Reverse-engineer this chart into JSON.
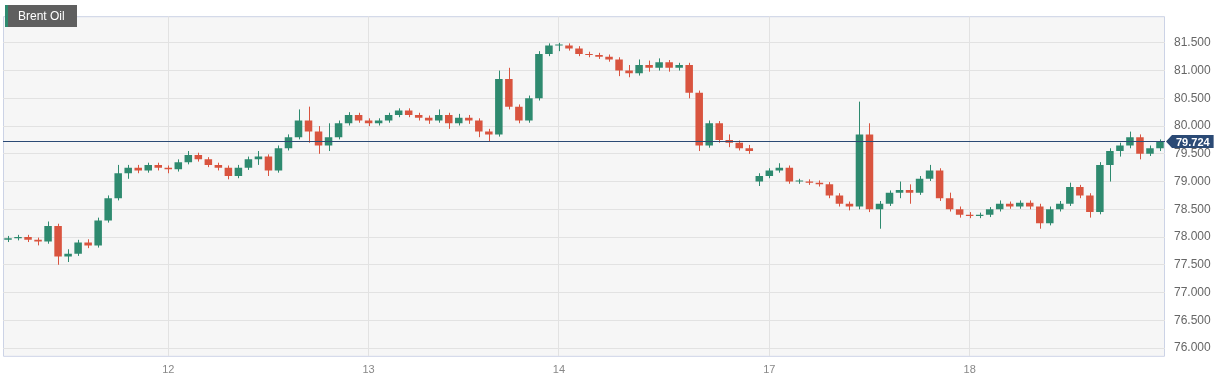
{
  "chart_data": {
    "type": "candlestick",
    "title": "Brent Oil",
    "categories": [
      null,
      null,
      null,
      null,
      null,
      null,
      null,
      null,
      null,
      null,
      null,
      null,
      null,
      null,
      null,
      null,
      "12",
      null,
      null,
      null,
      null,
      null,
      null,
      null,
      null,
      null,
      null,
      null,
      null,
      null,
      null,
      null,
      null,
      null,
      null,
      null,
      "13",
      null,
      null,
      null,
      null,
      null,
      null,
      null,
      null,
      null,
      null,
      null,
      null,
      null,
      null,
      null,
      null,
      null,
      null,
      "14",
      null,
      null,
      null,
      null,
      null,
      null,
      null,
      null,
      null,
      null,
      null,
      null,
      null,
      null,
      null,
      null,
      null,
      null,
      null,
      null,
      "17",
      null,
      null,
      null,
      null,
      null,
      null,
      null,
      null,
      null,
      null,
      null,
      null,
      null,
      null,
      null,
      null,
      null,
      null,
      null,
      "18",
      null,
      null,
      null,
      null,
      null,
      null,
      null,
      null,
      null,
      null,
      null,
      null,
      null,
      null,
      null,
      null,
      null,
      null,
      null
    ],
    "ohlc": [
      [
        77.95,
        78.02,
        77.91,
        77.98
      ],
      [
        77.98,
        78.04,
        77.94,
        78.0
      ],
      [
        78.0,
        78.04,
        77.91,
        77.95
      ],
      [
        77.95,
        77.99,
        77.85,
        77.92
      ],
      [
        77.92,
        78.28,
        77.88,
        78.2
      ],
      [
        78.2,
        78.24,
        77.5,
        77.65
      ],
      [
        77.65,
        77.78,
        77.55,
        77.7
      ],
      [
        77.7,
        77.95,
        77.66,
        77.9
      ],
      [
        77.9,
        77.96,
        77.8,
        77.85
      ],
      [
        77.85,
        78.35,
        77.81,
        78.3
      ],
      [
        78.3,
        78.75,
        78.26,
        78.7
      ],
      [
        78.7,
        79.3,
        78.66,
        79.15
      ],
      [
        79.15,
        79.3,
        79.05,
        79.25
      ],
      [
        79.25,
        79.3,
        79.15,
        79.2
      ],
      [
        79.2,
        79.34,
        79.16,
        79.3
      ],
      [
        79.3,
        79.34,
        79.2,
        79.25
      ],
      [
        79.25,
        79.29,
        79.15,
        79.22
      ],
      [
        79.22,
        79.4,
        79.18,
        79.35
      ],
      [
        79.35,
        79.55,
        79.31,
        79.48
      ],
      [
        79.48,
        79.52,
        79.36,
        79.4
      ],
      [
        79.4,
        79.44,
        79.26,
        79.3
      ],
      [
        79.3,
        79.34,
        79.2,
        79.25
      ],
      [
        79.25,
        79.29,
        79.04,
        79.1
      ],
      [
        79.1,
        79.3,
        79.06,
        79.25
      ],
      [
        79.25,
        79.45,
        79.21,
        79.4
      ],
      [
        79.4,
        79.55,
        79.3,
        79.45
      ],
      [
        79.45,
        79.49,
        79.1,
        79.2
      ],
      [
        79.2,
        79.65,
        79.16,
        79.6
      ],
      [
        79.6,
        79.85,
        79.56,
        79.8
      ],
      [
        79.8,
        80.3,
        79.76,
        80.1
      ],
      [
        80.1,
        80.35,
        79.7,
        79.9
      ],
      [
        79.9,
        80.0,
        79.5,
        79.65
      ],
      [
        79.65,
        80.05,
        79.55,
        79.8
      ],
      [
        79.8,
        80.1,
        79.76,
        80.05
      ],
      [
        80.05,
        80.25,
        80.01,
        80.2
      ],
      [
        80.2,
        80.24,
        80.06,
        80.1
      ],
      [
        80.1,
        80.14,
        80.0,
        80.05
      ],
      [
        80.05,
        80.14,
        80.01,
        80.1
      ],
      [
        80.1,
        80.24,
        80.06,
        80.2
      ],
      [
        80.2,
        80.32,
        80.16,
        80.28
      ],
      [
        80.28,
        80.32,
        80.16,
        80.2
      ],
      [
        80.2,
        80.24,
        80.1,
        80.15
      ],
      [
        80.15,
        80.19,
        80.04,
        80.1
      ],
      [
        80.1,
        80.3,
        80.06,
        80.2
      ],
      [
        80.2,
        80.24,
        79.95,
        80.05
      ],
      [
        80.05,
        80.22,
        80.01,
        80.15
      ],
      [
        80.15,
        80.2,
        80.04,
        80.1
      ],
      [
        80.1,
        80.14,
        79.8,
        79.9
      ],
      [
        79.9,
        79.95,
        79.72,
        79.85
      ],
      [
        79.85,
        81.0,
        79.81,
        80.85
      ],
      [
        80.85,
        81.05,
        80.3,
        80.35
      ],
      [
        80.35,
        80.39,
        80.05,
        80.1
      ],
      [
        80.1,
        80.55,
        80.06,
        80.5
      ],
      [
        80.5,
        81.35,
        80.46,
        81.3
      ],
      [
        81.3,
        81.49,
        81.26,
        81.45
      ],
      [
        81.45,
        81.5,
        81.35,
        81.45
      ],
      [
        81.45,
        81.49,
        81.36,
        81.4
      ],
      [
        81.4,
        81.44,
        81.26,
        81.3
      ],
      [
        81.3,
        81.34,
        81.24,
        81.28
      ],
      [
        81.28,
        81.32,
        81.21,
        81.25
      ],
      [
        81.25,
        81.29,
        81.16,
        81.2
      ],
      [
        81.2,
        81.24,
        80.9,
        81.0
      ],
      [
        81.0,
        81.1,
        80.88,
        80.95
      ],
      [
        80.95,
        81.2,
        80.91,
        81.1
      ],
      [
        81.1,
        81.18,
        80.98,
        81.05
      ],
      [
        81.05,
        81.22,
        81.0,
        81.15
      ],
      [
        81.15,
        81.19,
        80.98,
        81.05
      ],
      [
        81.05,
        81.14,
        81.0,
        81.1
      ],
      [
        81.1,
        81.14,
        80.5,
        80.6
      ],
      [
        80.6,
        80.64,
        79.55,
        79.65
      ],
      [
        79.65,
        80.1,
        79.61,
        80.05
      ],
      [
        80.05,
        80.09,
        79.7,
        79.75
      ],
      [
        79.75,
        79.85,
        79.62,
        79.7
      ],
      [
        79.7,
        79.74,
        79.56,
        79.6
      ],
      [
        79.6,
        79.66,
        79.5,
        79.55
      ],
      [
        79.0,
        79.15,
        78.92,
        79.1
      ],
      [
        79.1,
        79.24,
        79.06,
        79.2
      ],
      [
        79.2,
        79.33,
        79.16,
        79.25
      ],
      [
        79.25,
        79.29,
        78.96,
        79.0
      ],
      [
        79.0,
        79.05,
        78.96,
        79.0
      ],
      [
        79.0,
        79.04,
        78.94,
        78.98
      ],
      [
        78.98,
        79.02,
        78.91,
        78.95
      ],
      [
        78.95,
        78.99,
        78.7,
        78.75
      ],
      [
        78.75,
        78.79,
        78.55,
        78.6
      ],
      [
        78.6,
        78.64,
        78.48,
        78.55
      ],
      [
        78.55,
        80.44,
        78.5,
        79.85
      ],
      [
        79.85,
        80.05,
        78.45,
        78.5
      ],
      [
        78.5,
        78.65,
        78.15,
        78.6
      ],
      [
        78.6,
        78.84,
        78.56,
        78.8
      ],
      [
        78.8,
        79.0,
        78.7,
        78.85
      ],
      [
        78.85,
        78.95,
        78.6,
        78.8
      ],
      [
        78.8,
        79.1,
        78.76,
        79.05
      ],
      [
        79.05,
        79.3,
        79.01,
        79.2
      ],
      [
        79.2,
        79.24,
        78.65,
        78.7
      ],
      [
        78.7,
        78.8,
        78.46,
        78.5
      ],
      [
        78.5,
        78.55,
        78.35,
        78.4
      ],
      [
        78.4,
        78.45,
        78.34,
        78.38
      ],
      [
        78.38,
        78.44,
        78.34,
        78.4
      ],
      [
        78.4,
        78.54,
        78.36,
        78.5
      ],
      [
        78.5,
        78.66,
        78.46,
        78.6
      ],
      [
        78.6,
        78.64,
        78.51,
        78.55
      ],
      [
        78.55,
        78.66,
        78.51,
        78.62
      ],
      [
        78.62,
        78.66,
        78.5,
        78.55
      ],
      [
        78.55,
        78.6,
        78.15,
        78.25
      ],
      [
        78.25,
        78.55,
        78.21,
        78.5
      ],
      [
        78.5,
        78.65,
        78.46,
        78.6
      ],
      [
        78.6,
        78.98,
        78.56,
        78.9
      ],
      [
        78.9,
        78.94,
        78.7,
        78.75
      ],
      [
        78.75,
        78.79,
        78.35,
        78.45
      ],
      [
        78.45,
        79.35,
        78.41,
        79.3
      ],
      [
        79.3,
        79.6,
        79.0,
        79.55
      ],
      [
        79.55,
        79.7,
        79.45,
        79.65
      ],
      [
        79.65,
        79.9,
        79.6,
        79.8
      ],
      [
        79.8,
        79.85,
        79.4,
        79.5
      ],
      [
        79.5,
        79.65,
        79.46,
        79.6
      ],
      [
        79.6,
        79.76,
        79.55,
        79.724
      ]
    ],
    "ylim": [
      75.86,
      81.98
    ],
    "yticks": [
      {
        "value": 76,
        "label": "76.000"
      },
      {
        "value": 76.5,
        "label": "76.500"
      },
      {
        "value": 77,
        "label": "77.000"
      },
      {
        "value": 77.5,
        "label": "77.500"
      },
      {
        "value": 78,
        "label": "78.000"
      },
      {
        "value": 78.5,
        "label": "78.500"
      },
      {
        "value": 79,
        "label": "79.000"
      },
      {
        "value": 79.5,
        "label": "79.500"
      },
      {
        "value": 80,
        "label": "80.000"
      },
      {
        "value": 80.5,
        "label": "80.500"
      },
      {
        "value": 81,
        "label": "81.000"
      },
      {
        "value": 81.5,
        "label": "81.500"
      }
    ],
    "ref_lines": [
      {
        "axis": "y",
        "value": 79.724,
        "label": "79.724",
        "color": "#2b4a75"
      }
    ],
    "grid": true,
    "legend": false
  }
}
